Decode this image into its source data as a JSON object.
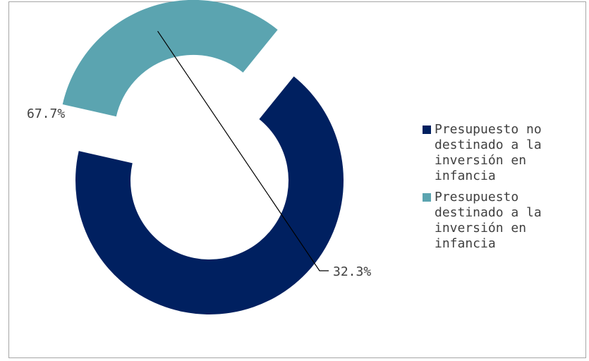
{
  "chart_data": {
    "type": "donut",
    "title": "",
    "series": [
      {
        "values": [
          67.7,
          32.3
        ],
        "data_labels": [
          "67.7%",
          "32.3%"
        ]
      }
    ],
    "categories": [
      "Presupuesto no destinado a la inversión en infancia",
      "Presupuesto destinado a la inversión en infancia"
    ],
    "colors": [
      "#002060",
      "#5BA4B0"
    ],
    "exploded_slice": 1,
    "legend_position": "right",
    "legend": [
      {
        "label": "Presupuesto no\ndestinado a la\ninversión en\ninfancia",
        "color": "#002060"
      },
      {
        "label": "Presupuesto\ndestinado a la\ninversión en\ninfancia",
        "color": "#5BA4B0"
      }
    ]
  }
}
